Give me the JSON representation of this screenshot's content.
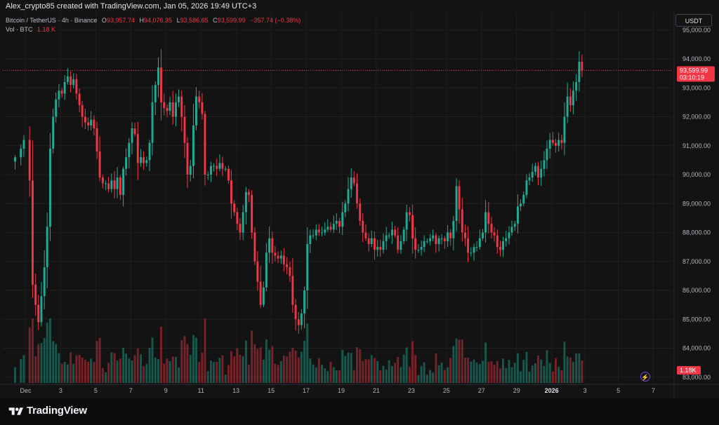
{
  "header": {
    "creator_text": "Alex_crypto85 created with TradingView.com, Jan 05, 2026 19:49 UTC+3"
  },
  "legend": {
    "pair": "Bitcoin / TetherUS · 4h · Binance",
    "open_key": "O",
    "open": "93,957.74",
    "high_key": "H",
    "high": "94,076.35",
    "low_key": "L",
    "low": "93,586.65",
    "close_key": "C",
    "close": "93,599.99",
    "change": "−357.74 (−0.38%)",
    "vol_label": "Vol · BTC",
    "vol_value": "1.18 K"
  },
  "toolbar": {
    "currency": "USDT"
  },
  "footer": {
    "brand": "TradingView"
  },
  "colors": {
    "up": "#22ab94",
    "down": "#f23645",
    "background": "#131313",
    "grid": "#1f1f1f",
    "text": "#b2b5be"
  },
  "chart_data": {
    "type": "candlestick",
    "symbol": "Bitcoin / TetherUS",
    "interval": "4h",
    "exchange": "Binance",
    "price_axis": {
      "ticks": [
        "95,000.00",
        "94,000.00",
        "93,000.00",
        "92,000.00",
        "91,000.00",
        "90,000.00",
        "89,000.00",
        "88,000.00",
        "87,000.00",
        "86,000.00",
        "85,000.00",
        "84,000.00",
        "83,000.00"
      ],
      "range": [
        82800,
        95600
      ]
    },
    "time_axis": {
      "ticks": [
        "Dec",
        "3",
        "5",
        "7",
        "9",
        "11",
        "13",
        "15",
        "17",
        "19",
        "21",
        "23",
        "25",
        "27",
        "29",
        "2026",
        "3",
        "5",
        "7"
      ],
      "bold_ticks": [
        "2026"
      ],
      "range_days": [
        -0.7,
        37.5
      ]
    },
    "last_price": {
      "value": 93599.99,
      "label": "93,599.99",
      "countdown": "03:10:19"
    },
    "last_volume_label": "1.18K",
    "anchor_closes": [
      [
        0,
        90600
      ],
      [
        0.33,
        90900
      ],
      [
        0.5,
        91200
      ],
      [
        0.83,
        89800
      ],
      [
        1.0,
        86200
      ],
      [
        1.17,
        85500
      ],
      [
        1.33,
        84900
      ],
      [
        1.5,
        85800
      ],
      [
        1.67,
        86800
      ],
      [
        1.83,
        88200
      ],
      [
        2.0,
        90900
      ],
      [
        2.17,
        92000
      ],
      [
        2.33,
        92600
      ],
      [
        2.5,
        92900
      ],
      [
        2.67,
        92800
      ],
      [
        2.83,
        93200
      ],
      [
        3.0,
        93400
      ],
      [
        3.17,
        93100
      ],
      [
        3.33,
        93300
      ],
      [
        3.5,
        92800
      ],
      [
        3.67,
        92400
      ],
      [
        3.83,
        92000
      ],
      [
        4.0,
        91800
      ],
      [
        4.17,
        91700
      ],
      [
        4.33,
        91900
      ],
      [
        4.5,
        91600
      ],
      [
        4.67,
        90800
      ],
      [
        4.83,
        89900
      ],
      [
        5.0,
        89700
      ],
      [
        5.17,
        89700
      ],
      [
        5.33,
        89500
      ],
      [
        5.5,
        89800
      ],
      [
        5.67,
        89500
      ],
      [
        5.83,
        89900
      ],
      [
        6.0,
        89300
      ],
      [
        6.17,
        90200
      ],
      [
        6.33,
        90600
      ],
      [
        6.5,
        91100
      ],
      [
        6.67,
        91600
      ],
      [
        6.83,
        91400
      ],
      [
        7.0,
        90400
      ],
      [
        7.17,
        90600
      ],
      [
        7.33,
        90400
      ],
      [
        7.5,
        90500
      ],
      [
        7.67,
        91100
      ],
      [
        7.83,
        92500
      ],
      [
        8.0,
        93100
      ],
      [
        8.17,
        93700
      ],
      [
        8.33,
        92500
      ],
      [
        8.5,
        92300
      ],
      [
        8.67,
        92200
      ],
      [
        8.83,
        92500
      ],
      [
        9.0,
        92000
      ],
      [
        9.17,
        92500
      ],
      [
        9.33,
        92700
      ],
      [
        9.5,
        92000
      ],
      [
        9.67,
        91100
      ],
      [
        9.83,
        90000
      ],
      [
        10.0,
        90300
      ],
      [
        10.17,
        91700
      ],
      [
        10.33,
        92700
      ],
      [
        10.5,
        92500
      ],
      [
        10.67,
        92100
      ],
      [
        10.83,
        90000
      ],
      [
        11.0,
        90000
      ],
      [
        11.17,
        90300
      ],
      [
        11.33,
        90300
      ],
      [
        11.5,
        90200
      ],
      [
        11.67,
        90400
      ],
      [
        11.83,
        90200
      ],
      [
        12.0,
        90200
      ],
      [
        12.17,
        89800
      ],
      [
        12.33,
        89000
      ],
      [
        12.5,
        88700
      ],
      [
        12.67,
        88300
      ],
      [
        12.83,
        88000
      ],
      [
        13.0,
        88700
      ],
      [
        13.17,
        89400
      ],
      [
        13.33,
        89300
      ],
      [
        13.5,
        88000
      ],
      [
        13.67,
        87000
      ],
      [
        13.83,
        86300
      ],
      [
        14.0,
        85500
      ],
      [
        14.17,
        86100
      ],
      [
        14.33,
        87300
      ],
      [
        14.5,
        87800
      ],
      [
        14.67,
        87300
      ],
      [
        14.83,
        87200
      ],
      [
        15.0,
        87100
      ],
      [
        15.17,
        87200
      ],
      [
        15.33,
        86900
      ],
      [
        15.5,
        86800
      ],
      [
        15.67,
        86500
      ],
      [
        15.83,
        85500
      ],
      [
        16.0,
        85000
      ],
      [
        16.17,
        84800
      ],
      [
        16.33,
        85200
      ],
      [
        16.5,
        86000
      ],
      [
        16.67,
        87600
      ],
      [
        16.83,
        87900
      ],
      [
        17.0,
        87900
      ],
      [
        17.17,
        88100
      ],
      [
        17.33,
        88000
      ],
      [
        17.5,
        88000
      ],
      [
        17.67,
        88100
      ],
      [
        17.83,
        88200
      ],
      [
        18.0,
        88100
      ],
      [
        18.17,
        88300
      ],
      [
        18.33,
        88400
      ],
      [
        18.5,
        88200
      ],
      [
        18.67,
        88700
      ],
      [
        18.83,
        89000
      ],
      [
        19.0,
        89500
      ],
      [
        19.17,
        89900
      ],
      [
        19.33,
        89700
      ],
      [
        19.5,
        89000
      ],
      [
        19.67,
        88400
      ],
      [
        19.83,
        88000
      ],
      [
        20.0,
        87800
      ],
      [
        20.17,
        87600
      ],
      [
        20.33,
        87800
      ],
      [
        20.5,
        87400
      ],
      [
        20.67,
        87500
      ],
      [
        20.83,
        87400
      ],
      [
        21.0,
        87700
      ],
      [
        21.17,
        87900
      ],
      [
        21.33,
        87900
      ],
      [
        21.5,
        88100
      ],
      [
        21.67,
        87900
      ],
      [
        21.83,
        87400
      ],
      [
        22.0,
        87700
      ],
      [
        22.17,
        88100
      ],
      [
        22.33,
        88700
      ],
      [
        22.5,
        88600
      ],
      [
        22.67,
        87800
      ],
      [
        22.83,
        87400
      ],
      [
        23.0,
        87400
      ],
      [
        23.17,
        87500
      ],
      [
        23.33,
        87700
      ],
      [
        23.5,
        87700
      ],
      [
        23.67,
        87800
      ],
      [
        23.83,
        87900
      ],
      [
        24.0,
        87600
      ],
      [
        24.17,
        87800
      ],
      [
        24.33,
        87800
      ],
      [
        24.5,
        87700
      ],
      [
        24.67,
        88000
      ],
      [
        24.83,
        87800
      ],
      [
        25.0,
        88400
      ],
      [
        25.17,
        89600
      ],
      [
        25.33,
        88800
      ],
      [
        25.5,
        88000
      ],
      [
        25.67,
        87800
      ],
      [
        25.83,
        87300
      ],
      [
        26.0,
        87300
      ],
      [
        26.17,
        87500
      ],
      [
        26.33,
        87500
      ],
      [
        26.5,
        87800
      ],
      [
        26.67,
        88000
      ],
      [
        26.83,
        88700
      ],
      [
        27.0,
        88300
      ],
      [
        27.17,
        88000
      ],
      [
        27.33,
        87900
      ],
      [
        27.5,
        87500
      ],
      [
        27.67,
        87400
      ],
      [
        27.83,
        87700
      ],
      [
        28.0,
        87800
      ],
      [
        28.17,
        88000
      ],
      [
        28.33,
        88200
      ],
      [
        28.5,
        88300
      ],
      [
        28.67,
        88900
      ],
      [
        28.83,
        89000
      ],
      [
        29.0,
        89300
      ],
      [
        29.17,
        89800
      ],
      [
        29.33,
        89900
      ],
      [
        29.5,
        90100
      ],
      [
        29.67,
        90300
      ],
      [
        29.83,
        89900
      ],
      [
        30.0,
        90200
      ],
      [
        30.17,
        90500
      ],
      [
        30.33,
        90900
      ],
      [
        30.5,
        91200
      ],
      [
        30.67,
        91100
      ],
      [
        30.83,
        91000
      ],
      [
        31.0,
        91200
      ],
      [
        31.17,
        91100
      ],
      [
        31.33,
        92000
      ],
      [
        31.5,
        92700
      ],
      [
        31.67,
        92400
      ],
      [
        31.83,
        92900
      ],
      [
        32.0,
        93200
      ],
      [
        32.17,
        93900
      ],
      [
        32.33,
        93600
      ]
    ],
    "volume_min_max": [
      0.2,
      1.9
    ]
  }
}
